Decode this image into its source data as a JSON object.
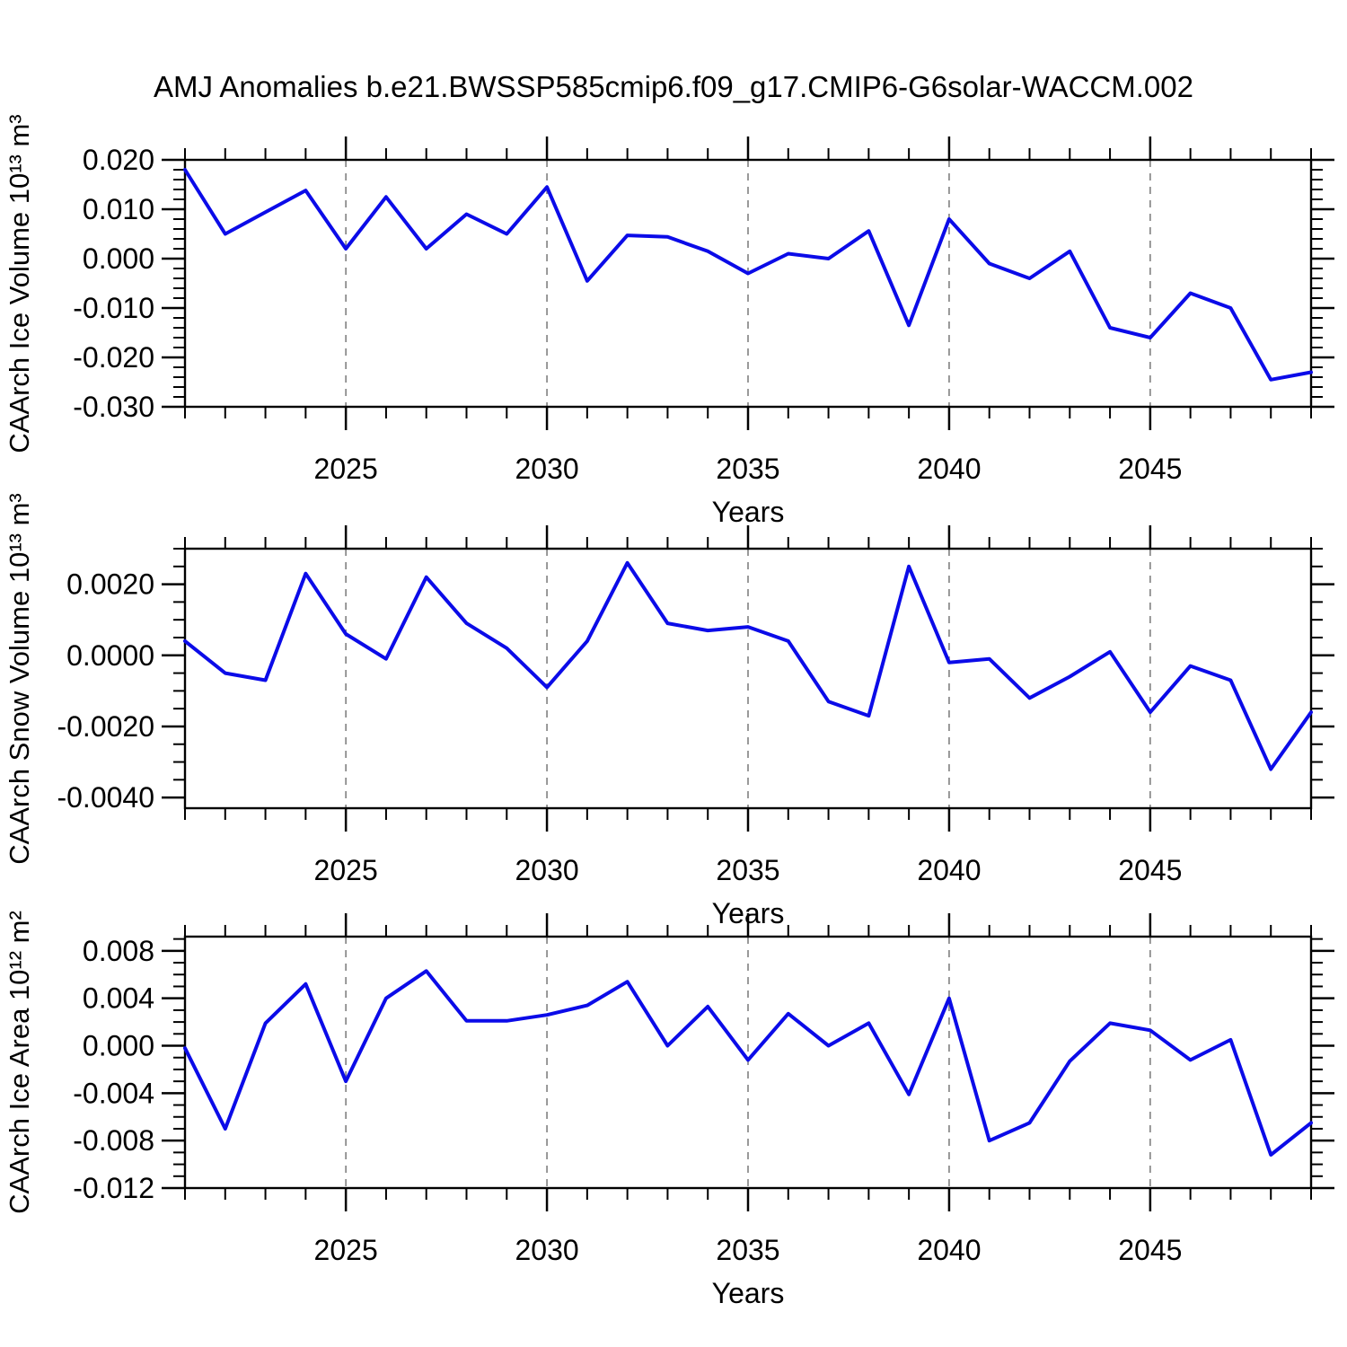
{
  "title": "AMJ Anomalies b.e21.BWSSP585cmip6.f09_g17.CMIP6-G6solar-WACCM.002",
  "colors": {
    "line": "#0b0be8",
    "axis": "#000000",
    "grid": "#808080",
    "background": "#ffffff"
  },
  "chart_data": [
    {
      "type": "line",
      "name": "ice-volume",
      "ylabel": "CAArch Ice Volume 10¹³ m³",
      "xlabel": "Years",
      "xlim": [
        2021,
        2049
      ],
      "ylim": [
        -0.03,
        0.02
      ],
      "grid": "vertical-dashed",
      "legend": "none",
      "x": [
        2021,
        2022,
        2023,
        2024,
        2025,
        2026,
        2027,
        2028,
        2029,
        2030,
        2031,
        2032,
        2033,
        2034,
        2035,
        2036,
        2037,
        2038,
        2039,
        2040,
        2041,
        2042,
        2043,
        2044,
        2045,
        2046,
        2047,
        2048,
        2049
      ],
      "values": [
        0.018,
        0.005,
        0.0094,
        0.0138,
        0.002,
        0.0125,
        0.002,
        0.009,
        0.005,
        0.0145,
        -0.0045,
        0.0047,
        0.0044,
        0.0015,
        -0.003,
        0.001,
        0.0,
        0.0056,
        -0.0135,
        0.008,
        -0.001,
        -0.004,
        0.0015,
        -0.014,
        -0.016,
        -0.007,
        -0.01,
        -0.0245,
        -0.023
      ],
      "yticks": {
        "labels": [
          "0.020",
          "0.010",
          "0.000",
          "-0.010",
          "-0.020",
          "-0.030"
        ],
        "values": [
          0.02,
          0.01,
          0.0,
          -0.01,
          -0.02,
          -0.03
        ],
        "minor_step": 0.002
      },
      "xticks": {
        "labels": [
          "2025",
          "2030",
          "2035",
          "2040",
          "2045"
        ],
        "values": [
          2025,
          2030,
          2035,
          2040,
          2045
        ],
        "minor_step": 1
      }
    },
    {
      "type": "line",
      "name": "snow-volume",
      "ylabel": "CAArch Snow Volume 10¹³ m³",
      "xlabel": "Years",
      "xlim": [
        2021,
        2049
      ],
      "ylim": [
        -0.0043,
        0.003
      ],
      "grid": "vertical-dashed",
      "legend": "none",
      "x": [
        2021,
        2022,
        2023,
        2024,
        2025,
        2026,
        2027,
        2028,
        2029,
        2030,
        2031,
        2032,
        2033,
        2034,
        2035,
        2036,
        2037,
        2038,
        2039,
        2040,
        2041,
        2042,
        2043,
        2044,
        2045,
        2046,
        2047,
        2048,
        2049
      ],
      "values": [
        0.0004,
        -0.0005,
        -0.0007,
        0.0023,
        0.0006,
        -0.0001,
        0.0022,
        0.0009,
        0.0002,
        -0.0009,
        0.0004,
        0.0026,
        0.0009,
        0.0007,
        0.0008,
        0.0004,
        -0.0013,
        -0.0017,
        0.0025,
        -0.0002,
        -0.0001,
        -0.0012,
        -0.0006,
        0.0001,
        -0.0016,
        -0.0003,
        -0.0007,
        -0.0032,
        -0.0016
      ],
      "yticks": {
        "labels": [
          "0.0020",
          "0.0000",
          "-0.0020",
          "-0.0040"
        ],
        "values": [
          0.002,
          0.0,
          -0.002,
          -0.004
        ],
        "minor_step": 0.0005
      },
      "xticks": {
        "labels": [
          "2025",
          "2030",
          "2035",
          "2040",
          "2045"
        ],
        "values": [
          2025,
          2030,
          2035,
          2040,
          2045
        ],
        "minor_step": 1
      }
    },
    {
      "type": "line",
      "name": "ice-area",
      "ylabel": "CAArch Ice Area 10¹² m²",
      "xlabel": "Years",
      "xlim": [
        2021,
        2049
      ],
      "ylim": [
        -0.012,
        0.0092
      ],
      "grid": "vertical-dashed",
      "legend": "none",
      "x": [
        2021,
        2022,
        2023,
        2024,
        2025,
        2026,
        2027,
        2028,
        2029,
        2030,
        2031,
        2032,
        2033,
        2034,
        2035,
        2036,
        2037,
        2038,
        2039,
        2040,
        2041,
        2042,
        2043,
        2044,
        2045,
        2046,
        2047,
        2048,
        2049
      ],
      "values": [
        -0.0002,
        -0.007,
        0.0019,
        0.0052,
        -0.003,
        0.004,
        0.0063,
        0.0021,
        0.0021,
        0.0026,
        0.0034,
        0.0054,
        0.0,
        0.0033,
        -0.0012,
        0.0027,
        0.0,
        0.0019,
        -0.0041,
        0.004,
        -0.008,
        -0.0065,
        -0.0013,
        0.0019,
        0.0013,
        -0.0012,
        0.0005,
        -0.0092,
        -0.0065
      ],
      "yticks": {
        "labels": [
          "0.008",
          "0.004",
          "0.000",
          "-0.004",
          "-0.008",
          "-0.012"
        ],
        "values": [
          0.008,
          0.004,
          0.0,
          -0.004,
          -0.008,
          -0.012
        ],
        "minor_step": 0.001
      },
      "xticks": {
        "labels": [
          "2025",
          "2030",
          "2035",
          "2040",
          "2045"
        ],
        "values": [
          2025,
          2030,
          2035,
          2040,
          2045
        ],
        "minor_step": 1
      }
    }
  ]
}
